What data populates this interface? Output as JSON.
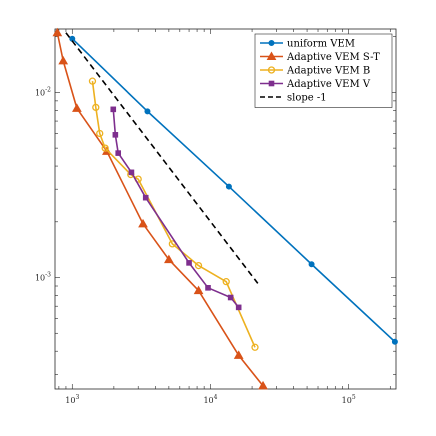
{
  "chart_data": {
    "type": "line",
    "xscale": "log",
    "yscale": "log",
    "xlim": [
      750,
      220000
    ],
    "ylim": [
      0.00025,
      0.022
    ],
    "grid": false,
    "legend_position": "top-right",
    "x_ticks": [
      {
        "value": 1000,
        "base": "10",
        "exp": "3"
      },
      {
        "value": 10000,
        "base": "10",
        "exp": "4"
      },
      {
        "value": 100000,
        "base": "10",
        "exp": "5"
      }
    ],
    "y_ticks": [
      {
        "value": 0.01,
        "base": "10",
        "exp": "-2"
      },
      {
        "value": 0.001,
        "base": "10",
        "exp": "-3"
      }
    ],
    "series": [
      {
        "name": "uniform VEM",
        "color": "#0072BD",
        "marker": "circle",
        "dash": "solid",
        "x": [
          1000,
          3500,
          13600,
          53900,
          216000
        ],
        "y": [
          0.0195,
          0.0079,
          0.0031,
          0.00118,
          0.00045
        ]
      },
      {
        "name": "Adaptive VEM S-T",
        "color": "#D95319",
        "marker": "triangle",
        "dash": "solid",
        "x": [
          780,
          860,
          1080,
          1780,
          3250,
          5000,
          8200,
          16000,
          24000
        ],
        "y": [
          0.021,
          0.0148,
          0.0082,
          0.0048,
          0.00195,
          0.00125,
          0.00085,
          0.00038,
          0.00026
        ]
      },
      {
        "name": "Adaptive VEM B",
        "color": "#EDB120",
        "marker": "circle-open",
        "dash": "solid",
        "x": [
          1400,
          1480,
          1580,
          1730,
          2650,
          3000,
          5300,
          8200,
          13000,
          21000
        ],
        "y": [
          0.0115,
          0.0083,
          0.006,
          0.005,
          0.0036,
          0.0034,
          0.00152,
          0.00116,
          0.00095,
          0.00042
        ]
      },
      {
        "name": "Adaptive VEM V",
        "color": "#7E2F8E",
        "marker": "square",
        "dash": "solid",
        "x": [
          1980,
          2050,
          2150,
          2680,
          3400,
          7000,
          9600,
          14000,
          16000
        ],
        "y": [
          0.0081,
          0.0059,
          0.0047,
          0.0037,
          0.0027,
          0.0012,
          0.00088,
          0.00078,
          0.00069
        ]
      },
      {
        "name": "slope -1",
        "color": "#000000",
        "marker": "none",
        "dash": "dashed",
        "x": [
          900,
          22000
        ],
        "y": [
          0.021,
          0.00093
        ]
      }
    ]
  }
}
